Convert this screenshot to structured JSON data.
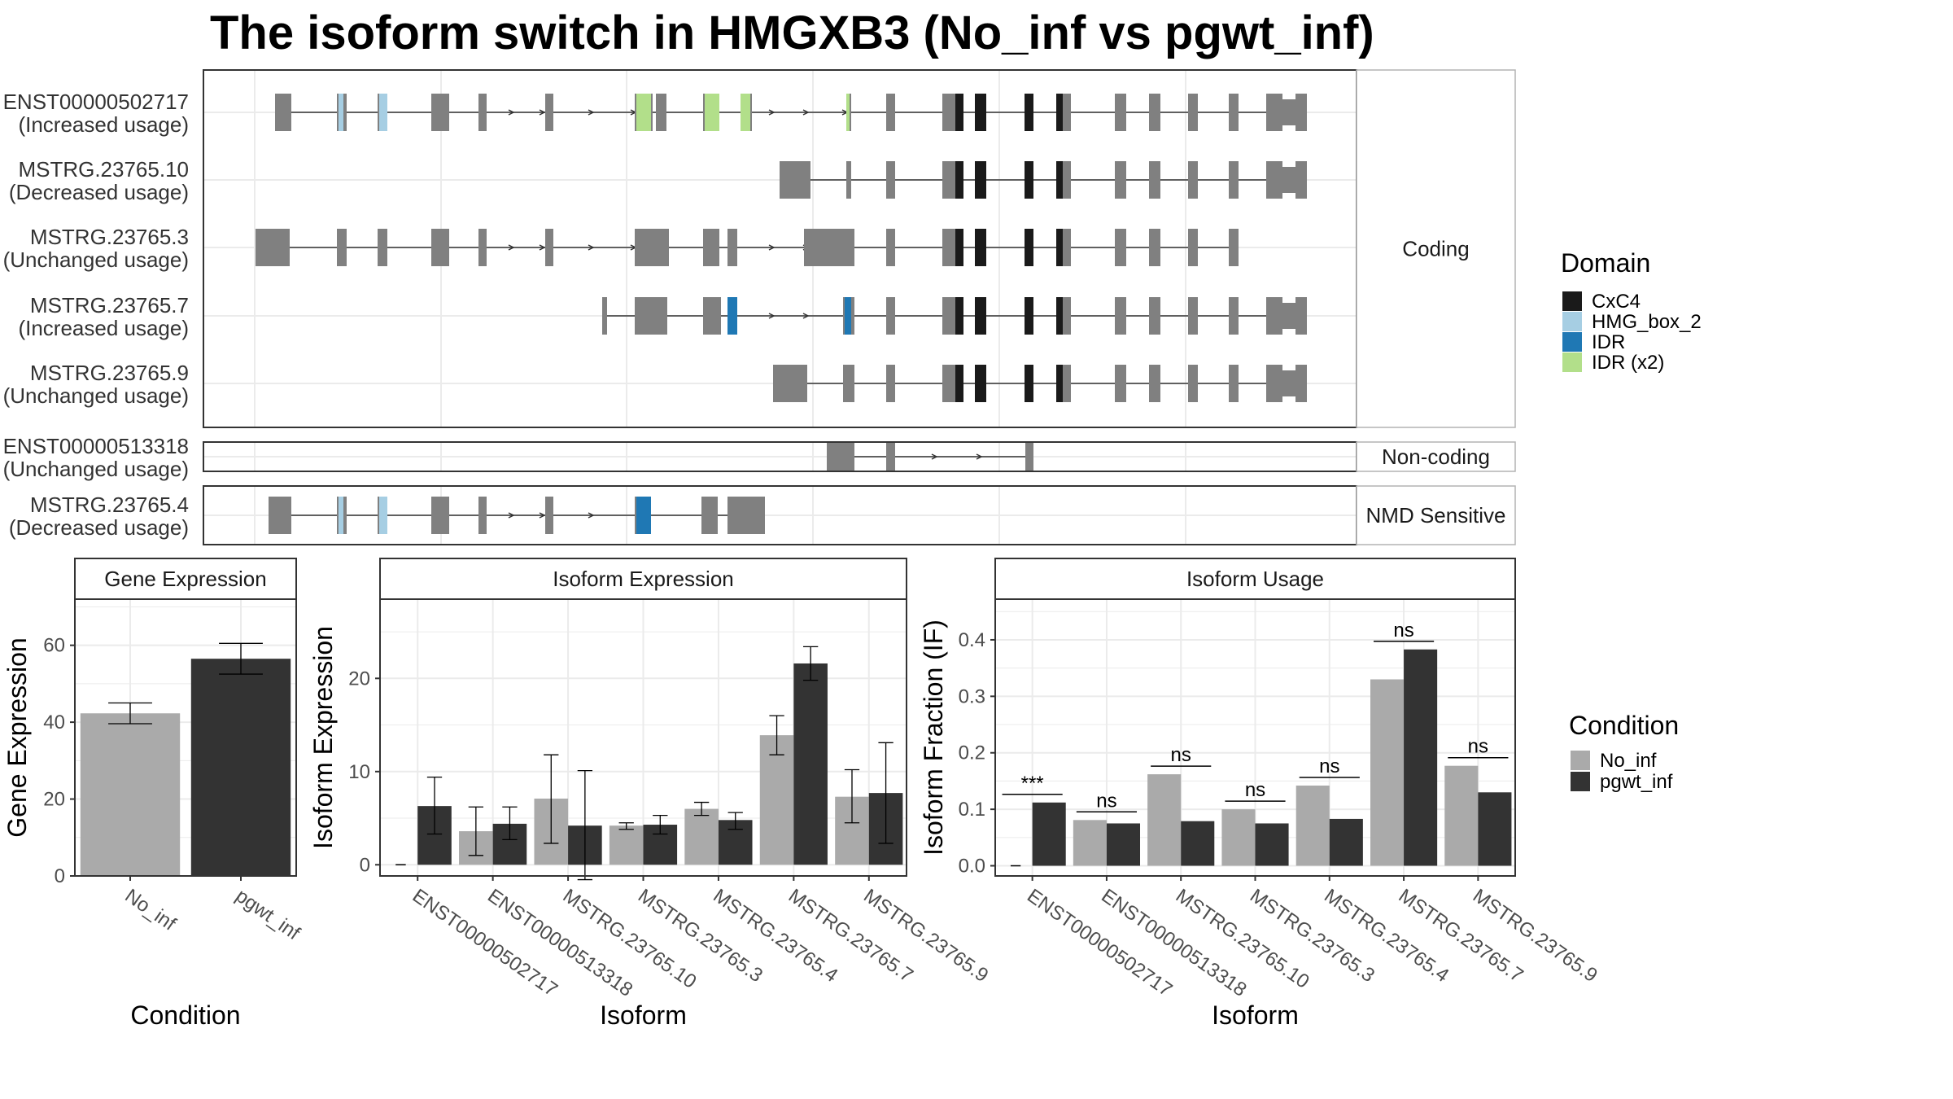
{
  "title": "The isoform switch in HMGXB3 (No_inf vs pgwt_inf)",
  "colors": {
    "exon": "#808080",
    "CxC4": "#1a1a1a",
    "HMG_box_2": "#a6cee3",
    "IDR": "#1f78b4",
    "IDR (x2)": "#b2df8a",
    "No_inf": "#aaaaaa",
    "pgwt_inf": "#333333",
    "grid": "#ebebeb",
    "panel_border": "#333333",
    "strip_border": "#b3b3b3"
  },
  "structure": {
    "facets": [
      {
        "label": "Coding",
        "transcripts": [
          "ENST00000502717\n(Increased usage)",
          "MSTRG.23765.10\n(Decreased usage)",
          "MSTRG.23765.3\n(Unchanged usage)",
          "MSTRG.23765.7\n(Increased usage)",
          "MSTRG.23765.9\n(Unchanged usage)"
        ]
      },
      {
        "label": "Non-coding",
        "transcripts": [
          "ENST00000513318\n(Unchanged usage)"
        ]
      },
      {
        "label": "NMD Sensitive",
        "transcripts": [
          "MSTRG.23765.4\n(Decreased usage)"
        ]
      }
    ]
  },
  "domain_legend": {
    "title": "Domain",
    "items": [
      {
        "name": "CxC4",
        "color": "#1a1a1a"
      },
      {
        "name": "HMG_box_2",
        "color": "#a6cee3"
      },
      {
        "name": "IDR",
        "color": "#1f78b4"
      },
      {
        "name": "IDR (x2)",
        "color": "#b2df8a"
      }
    ]
  },
  "condition_legend": {
    "title": "Condition",
    "items": [
      {
        "name": "No_inf",
        "color": "#aaaaaa"
      },
      {
        "name": "pgwt_inf",
        "color": "#333333"
      }
    ]
  },
  "chart_data": [
    {
      "type": "bar",
      "title": "Gene Expression",
      "xlabel": "Condition",
      "ylabel": "Gene Expression",
      "categories": [
        "No_inf",
        "pgwt_inf"
      ],
      "values": [
        42.3,
        56.5
      ],
      "error": [
        [
          39.6,
          45.0
        ],
        [
          52.5,
          60.5
        ]
      ],
      "ylim": [
        0,
        72
      ],
      "yticks": [
        0,
        20,
        40,
        60
      ],
      "grid": true
    },
    {
      "type": "bar",
      "title": "Isoform Expression",
      "xlabel": "Isoform",
      "ylabel": "Isoform Expression",
      "categories": [
        "ENST00000502717",
        "ENST00000513318",
        "MSTRG.23765.10",
        "MSTRG.23765.3",
        "MSTRG.23765.4",
        "MSTRG.23765.7",
        "MSTRG.23765.9"
      ],
      "series": [
        {
          "name": "No_inf",
          "values": [
            0.0,
            3.6,
            7.1,
            4.2,
            6.0,
            13.9,
            7.3
          ],
          "error": [
            [
              0,
              0
            ],
            [
              1.0,
              6.2
            ],
            [
              2.3,
              11.8
            ],
            [
              3.8,
              4.5
            ],
            [
              5.3,
              6.7
            ],
            [
              11.8,
              16.0
            ],
            [
              4.5,
              10.2
            ]
          ]
        },
        {
          "name": "pgwt_inf",
          "values": [
            6.3,
            4.4,
            4.2,
            4.3,
            4.8,
            21.6,
            7.7
          ],
          "error": [
            [
              3.3,
              9.4
            ],
            [
              2.7,
              6.2
            ],
            [
              -1.6,
              10.1
            ],
            [
              3.3,
              5.3
            ],
            [
              3.8,
              5.6
            ],
            [
              19.8,
              23.4
            ],
            [
              2.3,
              13.1
            ]
          ]
        }
      ],
      "ylim": [
        -1.2,
        28.5
      ],
      "yticks": [
        0,
        10,
        20
      ],
      "grid": true
    },
    {
      "type": "bar",
      "title": "Isoform Usage",
      "xlabel": "Isoform",
      "ylabel": "Isoform Fraction (IF)",
      "categories": [
        "ENST00000502717",
        "ENST00000513318",
        "MSTRG.23765.10",
        "MSTRG.23765.3",
        "MSTRG.23765.4",
        "MSTRG.23765.7",
        "MSTRG.23765.9"
      ],
      "series": [
        {
          "name": "No_inf",
          "values": [
            0.0,
            0.081,
            0.162,
            0.1,
            0.142,
            0.33,
            0.177
          ]
        },
        {
          "name": "pgwt_inf",
          "values": [
            0.112,
            0.075,
            0.079,
            0.075,
            0.083,
            0.383,
            0.13
          ]
        }
      ],
      "annotations": [
        "***",
        "ns",
        "ns",
        "ns",
        "ns",
        "ns",
        "ns"
      ],
      "ylim": [
        -0.018,
        0.472
      ],
      "yticks": [
        0.0,
        0.1,
        0.2,
        0.3,
        0.4
      ],
      "ytick_labels": [
        "0.0",
        "0.1",
        "0.2",
        "0.3",
        "0.4"
      ],
      "grid": true
    }
  ]
}
